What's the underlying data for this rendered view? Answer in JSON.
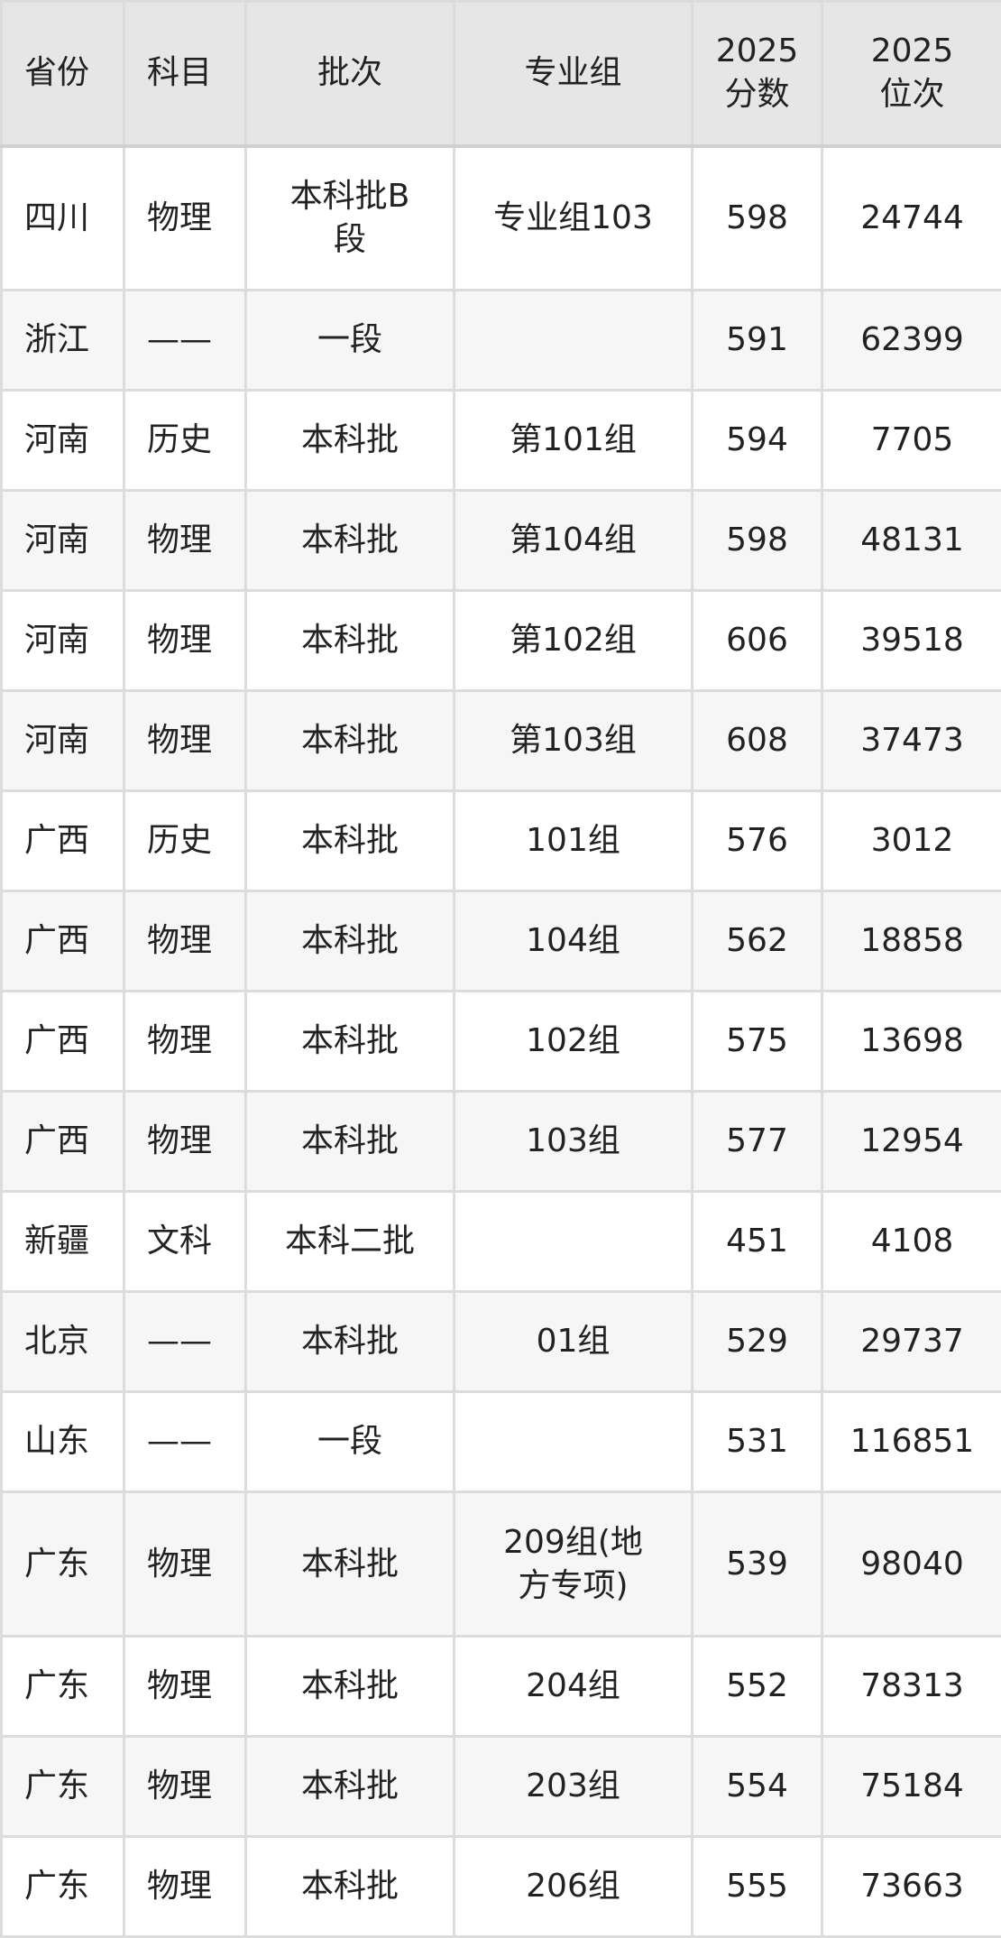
{
  "headers": [
    "省份",
    "科目",
    "批次",
    "专业组",
    "2025\n分数",
    "2025\n位次"
  ],
  "header_lines": [
    [
      "省份"
    ],
    [
      "科目"
    ],
    [
      "批次"
    ],
    [
      "专业组"
    ],
    [
      "2025",
      "分数"
    ],
    [
      "2025",
      "位次"
    ]
  ],
  "rows": [
    [
      "四川",
      "物理",
      "本科批B段",
      "专业组103",
      "598",
      "24744"
    ],
    [
      "浙江",
      "——",
      "一段",
      "",
      "591",
      "62399"
    ],
    [
      "河南",
      "历史",
      "本科批",
      "第101组",
      "594",
      "7705"
    ],
    [
      "河南",
      "物理",
      "本科批",
      "第104组",
      "598",
      "48131"
    ],
    [
      "河南",
      "物理",
      "本科批",
      "第102组",
      "606",
      "39518"
    ],
    [
      "河南",
      "物理",
      "本科批",
      "第103组",
      "608",
      "37473"
    ],
    [
      "广西",
      "历史",
      "本科批",
      "101组",
      "576",
      "3012"
    ],
    [
      "广西",
      "物理",
      "本科批",
      "104组",
      "562",
      "18858"
    ],
    [
      "广西",
      "物理",
      "本科批",
      "102组",
      "575",
      "13698"
    ],
    [
      "广西",
      "物理",
      "本科批",
      "103组",
      "577",
      "12954"
    ],
    [
      "新疆",
      "文科",
      "本科二批",
      "",
      "451",
      "4108"
    ],
    [
      "北京",
      "——",
      "本科批",
      "01组",
      "529",
      "29737"
    ],
    [
      "山东",
      "——",
      "一段",
      "",
      "531",
      "116851"
    ],
    [
      "广东",
      "物理",
      "本科批",
      "209组(地方专项)",
      "539",
      "98040"
    ],
    [
      "广东",
      "物理",
      "本科批",
      "204组",
      "552",
      "78313"
    ],
    [
      "广东",
      "物理",
      "本科批",
      "203组",
      "554",
      "75184"
    ],
    [
      "广东",
      "物理",
      "本科批",
      "206组",
      "555",
      "73663"
    ]
  ],
  "colors": {
    "header_bg": "#e6e6e6",
    "alt_row_bg": "#f6f6f6",
    "border": "#dcdcdc",
    "text": "#222222"
  }
}
